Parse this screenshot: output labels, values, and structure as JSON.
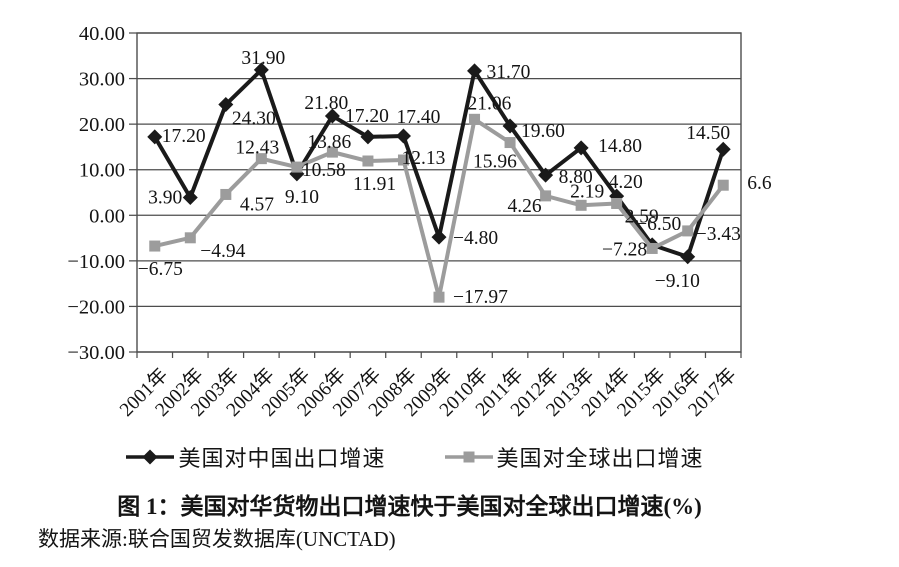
{
  "chart_data": {
    "type": "line",
    "title": "图 1：美国对华货物出口增速快于美国对全球出口增速(%)",
    "source_note": "数据来源:联合国贸发数据库(UNCTAD)",
    "categories": [
      "2001年",
      "2002年",
      "2003年",
      "2004年",
      "2005年",
      "2006年",
      "2007年",
      "2008年",
      "2009年",
      "2010年",
      "2011年",
      "2012年",
      "2013年",
      "2014年",
      "2015年",
      "2016年",
      "2017年"
    ],
    "series": [
      {
        "name": "美国对中国出口增速",
        "marker": "diamond",
        "color": "#1a1a1a",
        "values": [
          17.2,
          3.9,
          24.3,
          31.9,
          9.1,
          21.8,
          17.2,
          17.4,
          -4.8,
          31.7,
          19.6,
          8.8,
          14.8,
          4.2,
          -6.5,
          -9.1,
          14.5
        ],
        "labels": [
          "17.20",
          "3.90",
          "24.30",
          "31.90",
          "9.10",
          "21.80",
          "17.20",
          "17.40",
          "−4.80",
          "31.70",
          "19.60",
          "8.80",
          "14.80",
          "4.20",
          "−6.50",
          "−9.10",
          "14.50"
        ]
      },
      {
        "name": "美国对全球出口增速",
        "marker": "square",
        "color": "#9c9c9c",
        "values": [
          -6.75,
          -4.94,
          4.57,
          12.43,
          10.58,
          13.86,
          11.91,
          12.13,
          -17.97,
          21.06,
          15.96,
          4.26,
          2.19,
          2.59,
          -7.28,
          -3.43,
          6.6
        ],
        "labels": [
          "−6.75",
          "−4.94",
          "4.57",
          "12.43",
          "10.58",
          "13.86",
          "11.91",
          "12.13",
          "−17.97",
          "21.06",
          "15.96",
          "4.26",
          "2.19",
          "2.59",
          "−7.28",
          "−3.43",
          "6.6"
        ]
      }
    ],
    "y_axis": {
      "min": -30,
      "max": 40,
      "step": 10,
      "tick_labels": [
        "40.00",
        "30.00",
        "20.00",
        "10.00",
        "0.00",
        "−10.00",
        "−20.00",
        "−30.00"
      ]
    },
    "grid": true,
    "legend_position": "bottom",
    "axis_color": "#4d4d4d",
    "label_color": "#141414"
  }
}
